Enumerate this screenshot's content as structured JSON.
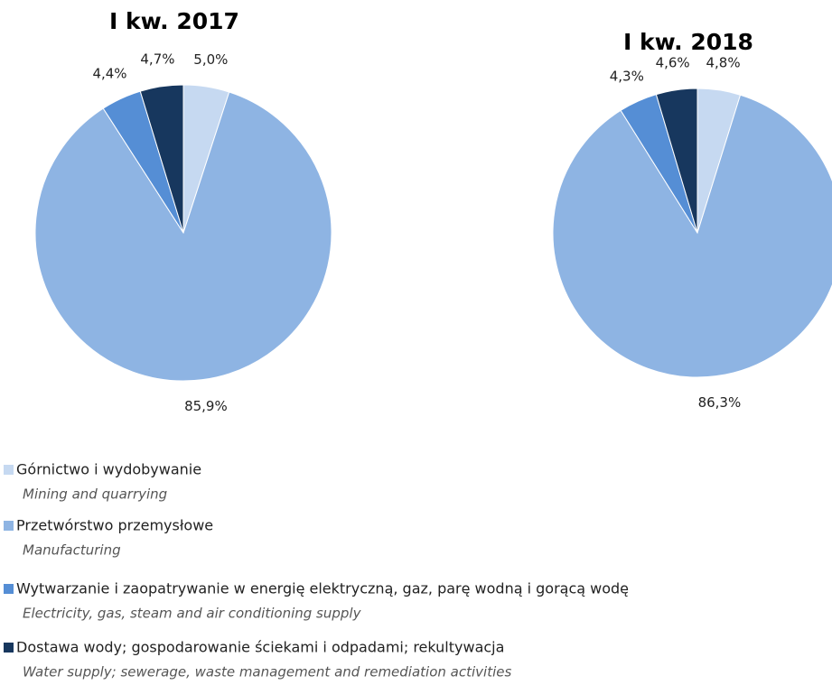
{
  "chart_data": [
    {
      "type": "pie",
      "title": "I kw. 2017",
      "values": [
        5.0,
        85.9,
        4.4,
        4.7
      ],
      "value_labels": [
        "5,0%",
        "85,9%",
        "4,4%",
        "4,7%"
      ]
    },
    {
      "type": "pie",
      "title": "I kw. 2018",
      "values": [
        4.8,
        86.3,
        4.3,
        4.6
      ],
      "value_labels": [
        "4,8%",
        "86,3%",
        "4,3%",
        "4,6%"
      ]
    }
  ],
  "legend": [
    {
      "label": "Górnictwo i wydobywanie",
      "translation": "Mining and quarrying",
      "color": "#c6d9f1"
    },
    {
      "label": "Przetwórstwo przemysłowe",
      "translation": "Manufacturing",
      "color": "#8eb4e3"
    },
    {
      "label": "Wytwarzanie i zaopatrywanie w energię elektryczną, gaz, parę wodną i gorącą wodę",
      "translation": "Electricity, gas, steam and air conditioning supply",
      "color": "#558ed5"
    },
    {
      "label": "Dostawa wody; gospodarowanie ściekami i odpadami; rekultywacja",
      "translation": "Water supply; sewerage, waste management and remediation activities",
      "color": "#17375e"
    }
  ]
}
